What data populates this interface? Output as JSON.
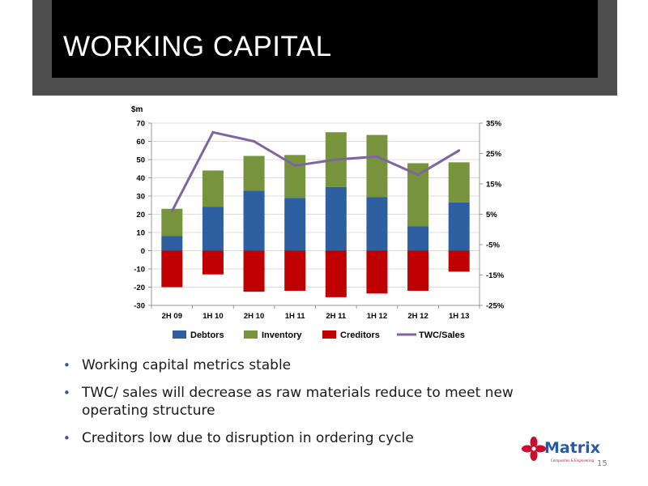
{
  "slide": {
    "title": "WORKING CAPITAL",
    "page_number": "15",
    "bullets": [
      "Working capital metrics stable",
      "TWC/ sales will decrease as raw materials reduce to meet new operating structure",
      "Creditors low due to disruption in ordering cycle"
    ],
    "logo": {
      "name": "Matrix",
      "tagline": "Composites & Engineering"
    }
  },
  "colors": {
    "debtors": "#2e5fa1",
    "inventory": "#77933c",
    "creditors": "#c00000",
    "twc_sales": "#8064a2"
  },
  "chart_data": {
    "type": "bar",
    "stacked": true,
    "unit_label": "$m",
    "categories": [
      "2H 09",
      "1H 10",
      "2H 10",
      "1H 11",
      "2H 11",
      "1H 12",
      "2H 12",
      "1H 13"
    ],
    "series": [
      {
        "name": "Debtors",
        "type": "bar",
        "axis": "left",
        "values": [
          8,
          24,
          33,
          29,
          35,
          29.5,
          13.5,
          26.5
        ]
      },
      {
        "name": "Inventory",
        "type": "bar",
        "axis": "left",
        "values": [
          15,
          20,
          19,
          23.5,
          30,
          34,
          34.5,
          22
        ]
      },
      {
        "name": "Creditors",
        "type": "bar",
        "axis": "left",
        "values": [
          -20,
          -13,
          -22.5,
          -22,
          -25.5,
          -23.5,
          -22,
          -11.5
        ]
      },
      {
        "name": "TWC/Sales",
        "type": "line",
        "axis": "right",
        "values": [
          6,
          32,
          29,
          21,
          23,
          24,
          18,
          26
        ]
      }
    ],
    "y_left": {
      "min": -30,
      "max": 70,
      "ticks": [
        "70",
        "60",
        "50",
        "40",
        "30",
        "20",
        "10",
        "0",
        "-10",
        "-20",
        "-30"
      ]
    },
    "y_right": {
      "min": -25,
      "max": 35,
      "ticks": [
        "35%",
        "25%",
        "15%",
        "5%",
        "-5%",
        "-15%",
        "-25%"
      ]
    },
    "grid": true,
    "legend_position": "bottom"
  }
}
